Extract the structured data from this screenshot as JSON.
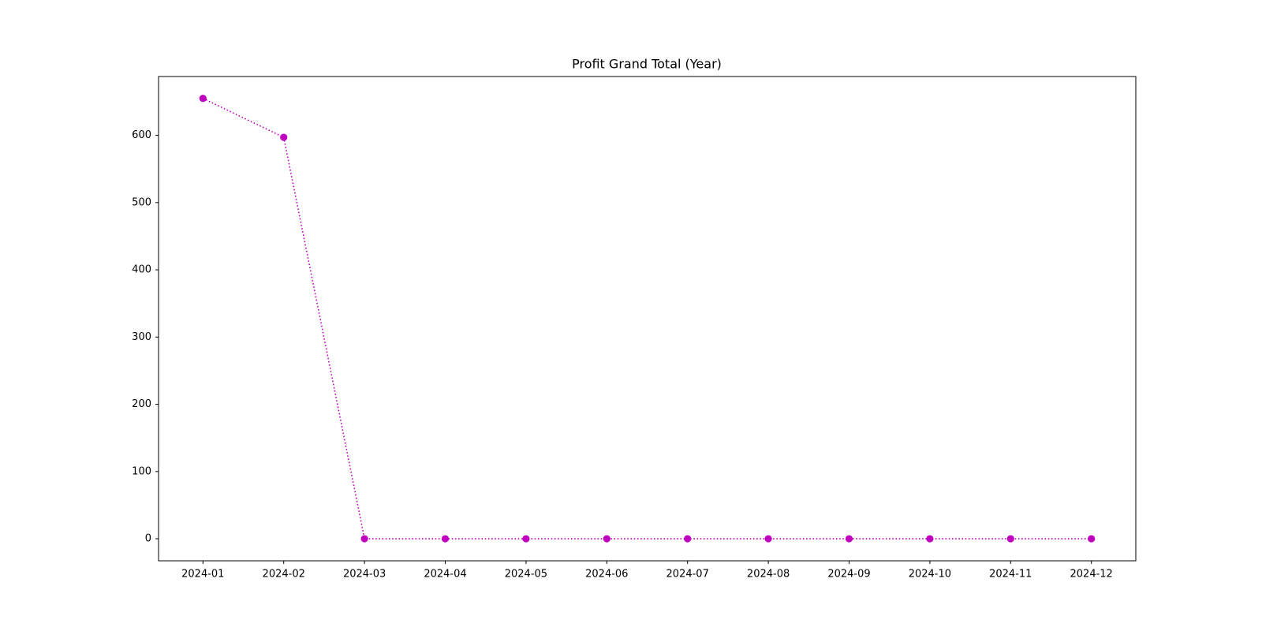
{
  "chart_data": {
    "type": "line",
    "title": "Profit Grand Total (Year)",
    "categories": [
      "2024-01",
      "2024-02",
      "2024-03",
      "2024-04",
      "2024-05",
      "2024-06",
      "2024-07",
      "2024-08",
      "2024-09",
      "2024-10",
      "2024-11",
      "2024-12"
    ],
    "values": [
      655,
      597,
      0,
      0,
      0,
      0,
      0,
      0,
      0,
      0,
      0,
      0
    ],
    "color": "#bf00bf",
    "line_style": "dotted",
    "marker": "circle",
    "ylim": [
      -32.8,
      687.5
    ],
    "yticks": [
      0,
      100,
      200,
      300,
      400,
      500,
      600
    ],
    "grid": false
  }
}
